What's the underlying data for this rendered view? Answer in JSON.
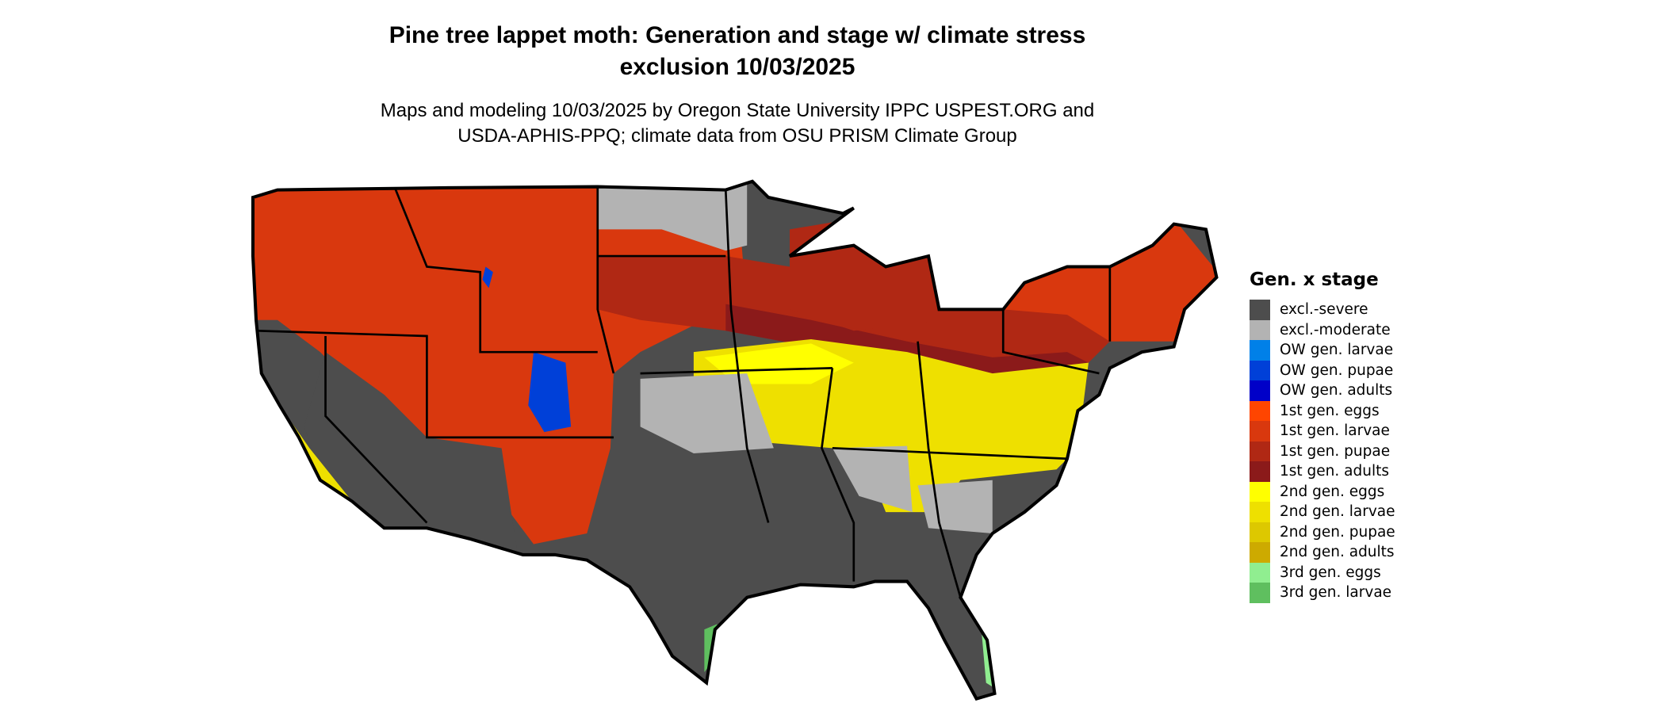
{
  "title": {
    "line1": "Pine tree lappet moth: Generation and stage w/ climate stress",
    "line2": "exclusion 10/03/2025"
  },
  "subtitle": {
    "line1": "Maps and modeling 10/03/2025 by Oregon State University IPPC USPEST.ORG and",
    "line2": "USDA-APHIS-PPQ; climate data from OSU PRISM Climate Group"
  },
  "legend": {
    "title": "Gen. x stage",
    "items": [
      {
        "label": "excl.-severe",
        "color": "#4D4D4D"
      },
      {
        "label": "excl.-moderate",
        "color": "#B3B3B3"
      },
      {
        "label": "OW gen. larvae",
        "color": "#0080E8"
      },
      {
        "label": "OW gen. pupae",
        "color": "#0040D8"
      },
      {
        "label": "OW gen. adults",
        "color": "#0000C8"
      },
      {
        "label": "1st gen. eggs",
        "color": "#FF4500"
      },
      {
        "label": "1st gen. larvae",
        "color": "#D9380E"
      },
      {
        "label": "1st gen. pupae",
        "color": "#B02814"
      },
      {
        "label": "1st gen. adults",
        "color": "#8B1A1A"
      },
      {
        "label": "2nd gen. eggs",
        "color": "#FFFF00"
      },
      {
        "label": "2nd gen. larvae",
        "color": "#EEE000"
      },
      {
        "label": "2nd gen. pupae",
        "color": "#DDC800"
      },
      {
        "label": "2nd gen. adults",
        "color": "#CDAA00"
      },
      {
        "label": "3rd gen. eggs",
        "color": "#90EE90"
      },
      {
        "label": "3rd gen. larvae",
        "color": "#5FBF5F"
      }
    ]
  }
}
